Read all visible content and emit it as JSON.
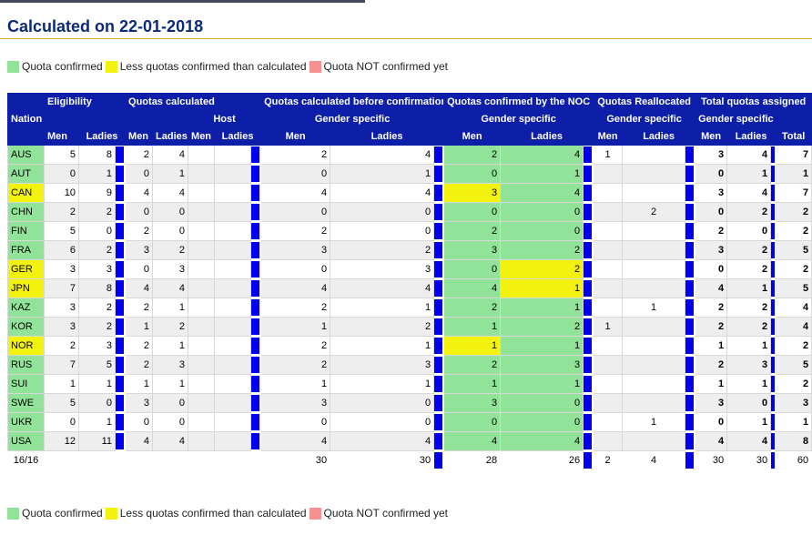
{
  "title": "Calculated on 22-01-2018",
  "legend": [
    {
      "label": "Quota confirmed",
      "color": "#92e39a"
    },
    {
      "label": "Less quotas confirmed than calculated",
      "color": "#f2f20e"
    },
    {
      "label": "Quota NOT confirmed yet",
      "color": "#f79090"
    }
  ],
  "headers": {
    "nation": "Nation",
    "eligibility": "Eligibility",
    "quotas_calculated": "Quotas calculated",
    "host": "Host",
    "before_confirmation": "Quotas calculated before confirmation",
    "confirmed_by_noc": "Quotas confirmed by the NOC",
    "reallocated": "Quotas Reallocated",
    "total_assigned": "Total quotas assigned",
    "gender_specific": "Gender specific",
    "men": "Men",
    "ladies": "Ladies",
    "total": "Total"
  },
  "rows": [
    {
      "nation": "AUS",
      "nation_status": "g",
      "elig_men": "5",
      "elig_ladies": "8",
      "calc_men": "2",
      "calc_ladies": "4",
      "host_men": "",
      "host_ladies": "",
      "before_men": "2",
      "before_ladies": "4",
      "conf_men": "2",
      "conf_men_status": "g",
      "conf_ladies": "4",
      "conf_ladies_status": "g",
      "realloc_men": "1",
      "realloc_ladies": "",
      "total_men": "3",
      "total_ladies": "4",
      "total": "7"
    },
    {
      "nation": "AUT",
      "nation_status": "g",
      "elig_men": "0",
      "elig_ladies": "1",
      "calc_men": "0",
      "calc_ladies": "1",
      "host_men": "",
      "host_ladies": "",
      "before_men": "0",
      "before_ladies": "1",
      "conf_men": "0",
      "conf_men_status": "g",
      "conf_ladies": "1",
      "conf_ladies_status": "g",
      "realloc_men": "",
      "realloc_ladies": "",
      "total_men": "0",
      "total_ladies": "1",
      "total": "1"
    },
    {
      "nation": "CAN",
      "nation_status": "y",
      "elig_men": "10",
      "elig_ladies": "9",
      "calc_men": "4",
      "calc_ladies": "4",
      "host_men": "",
      "host_ladies": "",
      "before_men": "4",
      "before_ladies": "4",
      "conf_men": "3",
      "conf_men_status": "y",
      "conf_ladies": "4",
      "conf_ladies_status": "g",
      "realloc_men": "",
      "realloc_ladies": "",
      "total_men": "3",
      "total_ladies": "4",
      "total": "7"
    },
    {
      "nation": "CHN",
      "nation_status": "g",
      "elig_men": "2",
      "elig_ladies": "2",
      "calc_men": "0",
      "calc_ladies": "0",
      "host_men": "",
      "host_ladies": "",
      "before_men": "0",
      "before_ladies": "0",
      "conf_men": "0",
      "conf_men_status": "g",
      "conf_ladies": "0",
      "conf_ladies_status": "g",
      "realloc_men": "",
      "realloc_ladies": "2",
      "total_men": "0",
      "total_ladies": "2",
      "total": "2"
    },
    {
      "nation": "FIN",
      "nation_status": "g",
      "elig_men": "5",
      "elig_ladies": "0",
      "calc_men": "2",
      "calc_ladies": "0",
      "host_men": "",
      "host_ladies": "",
      "before_men": "2",
      "before_ladies": "0",
      "conf_men": "2",
      "conf_men_status": "g",
      "conf_ladies": "0",
      "conf_ladies_status": "g",
      "realloc_men": "",
      "realloc_ladies": "",
      "total_men": "2",
      "total_ladies": "0",
      "total": "2"
    },
    {
      "nation": "FRA",
      "nation_status": "g",
      "elig_men": "6",
      "elig_ladies": "2",
      "calc_men": "3",
      "calc_ladies": "2",
      "host_men": "",
      "host_ladies": "",
      "before_men": "3",
      "before_ladies": "2",
      "conf_men": "3",
      "conf_men_status": "g",
      "conf_ladies": "2",
      "conf_ladies_status": "g",
      "realloc_men": "",
      "realloc_ladies": "",
      "total_men": "3",
      "total_ladies": "2",
      "total": "5"
    },
    {
      "nation": "GER",
      "nation_status": "y",
      "elig_men": "3",
      "elig_ladies": "3",
      "calc_men": "0",
      "calc_ladies": "3",
      "host_men": "",
      "host_ladies": "",
      "before_men": "0",
      "before_ladies": "3",
      "conf_men": "0",
      "conf_men_status": "g",
      "conf_ladies": "2",
      "conf_ladies_status": "y",
      "realloc_men": "",
      "realloc_ladies": "",
      "total_men": "0",
      "total_ladies": "2",
      "total": "2"
    },
    {
      "nation": "JPN",
      "nation_status": "y",
      "elig_men": "7",
      "elig_ladies": "8",
      "calc_men": "4",
      "calc_ladies": "4",
      "host_men": "",
      "host_ladies": "",
      "before_men": "4",
      "before_ladies": "4",
      "conf_men": "4",
      "conf_men_status": "g",
      "conf_ladies": "1",
      "conf_ladies_status": "y",
      "realloc_men": "",
      "realloc_ladies": "",
      "total_men": "4",
      "total_ladies": "1",
      "total": "5"
    },
    {
      "nation": "KAZ",
      "nation_status": "g",
      "elig_men": "3",
      "elig_ladies": "2",
      "calc_men": "2",
      "calc_ladies": "1",
      "host_men": "",
      "host_ladies": "",
      "before_men": "2",
      "before_ladies": "1",
      "conf_men": "2",
      "conf_men_status": "g",
      "conf_ladies": "1",
      "conf_ladies_status": "g",
      "realloc_men": "",
      "realloc_ladies": "1",
      "total_men": "2",
      "total_ladies": "2",
      "total": "4"
    },
    {
      "nation": "KOR",
      "nation_status": "g",
      "elig_men": "3",
      "elig_ladies": "2",
      "calc_men": "1",
      "calc_ladies": "2",
      "host_men": "",
      "host_ladies": "",
      "before_men": "1",
      "before_ladies": "2",
      "conf_men": "1",
      "conf_men_status": "g",
      "conf_ladies": "2",
      "conf_ladies_status": "g",
      "realloc_men": "1",
      "realloc_ladies": "",
      "total_men": "2",
      "total_ladies": "2",
      "total": "4"
    },
    {
      "nation": "NOR",
      "nation_status": "y",
      "elig_men": "2",
      "elig_ladies": "3",
      "calc_men": "2",
      "calc_ladies": "1",
      "host_men": "",
      "host_ladies": "",
      "before_men": "2",
      "before_ladies": "1",
      "conf_men": "1",
      "conf_men_status": "y",
      "conf_ladies": "1",
      "conf_ladies_status": "g",
      "realloc_men": "",
      "realloc_ladies": "",
      "total_men": "1",
      "total_ladies": "1",
      "total": "2"
    },
    {
      "nation": "RUS",
      "nation_status": "g",
      "elig_men": "7",
      "elig_ladies": "5",
      "calc_men": "2",
      "calc_ladies": "3",
      "host_men": "",
      "host_ladies": "",
      "before_men": "2",
      "before_ladies": "3",
      "conf_men": "2",
      "conf_men_status": "g",
      "conf_ladies": "3",
      "conf_ladies_status": "g",
      "realloc_men": "",
      "realloc_ladies": "",
      "total_men": "2",
      "total_ladies": "3",
      "total": "5"
    },
    {
      "nation": "SUI",
      "nation_status": "g",
      "elig_men": "1",
      "elig_ladies": "1",
      "calc_men": "1",
      "calc_ladies": "1",
      "host_men": "",
      "host_ladies": "",
      "before_men": "1",
      "before_ladies": "1",
      "conf_men": "1",
      "conf_men_status": "g",
      "conf_ladies": "1",
      "conf_ladies_status": "g",
      "realloc_men": "",
      "realloc_ladies": "",
      "total_men": "1",
      "total_ladies": "1",
      "total": "2"
    },
    {
      "nation": "SWE",
      "nation_status": "g",
      "elig_men": "5",
      "elig_ladies": "0",
      "calc_men": "3",
      "calc_ladies": "0",
      "host_men": "",
      "host_ladies": "",
      "before_men": "3",
      "before_ladies": "0",
      "conf_men": "3",
      "conf_men_status": "g",
      "conf_ladies": "0",
      "conf_ladies_status": "g",
      "realloc_men": "",
      "realloc_ladies": "",
      "total_men": "3",
      "total_ladies": "0",
      "total": "3"
    },
    {
      "nation": "UKR",
      "nation_status": "g",
      "elig_men": "0",
      "elig_ladies": "1",
      "calc_men": "0",
      "calc_ladies": "0",
      "host_men": "",
      "host_ladies": "",
      "before_men": "0",
      "before_ladies": "0",
      "conf_men": "0",
      "conf_men_status": "g",
      "conf_ladies": "0",
      "conf_ladies_status": "g",
      "realloc_men": "",
      "realloc_ladies": "1",
      "total_men": "0",
      "total_ladies": "1",
      "total": "1"
    },
    {
      "nation": "USA",
      "nation_status": "g",
      "elig_men": "12",
      "elig_ladies": "11",
      "calc_men": "4",
      "calc_ladies": "4",
      "host_men": "",
      "host_ladies": "",
      "before_men": "4",
      "before_ladies": "4",
      "conf_men": "4",
      "conf_men_status": "g",
      "conf_ladies": "4",
      "conf_ladies_status": "g",
      "realloc_men": "",
      "realloc_ladies": "",
      "total_men": "4",
      "total_ladies": "4",
      "total": "8"
    }
  ],
  "totals": {
    "nations": "16/16",
    "before_men": "30",
    "before_ladies": "30",
    "conf_men": "28",
    "conf_ladies": "26",
    "realloc_men": "2",
    "realloc_ladies": "4",
    "total_men": "30",
    "total_ladies": "30",
    "total": "60"
  }
}
